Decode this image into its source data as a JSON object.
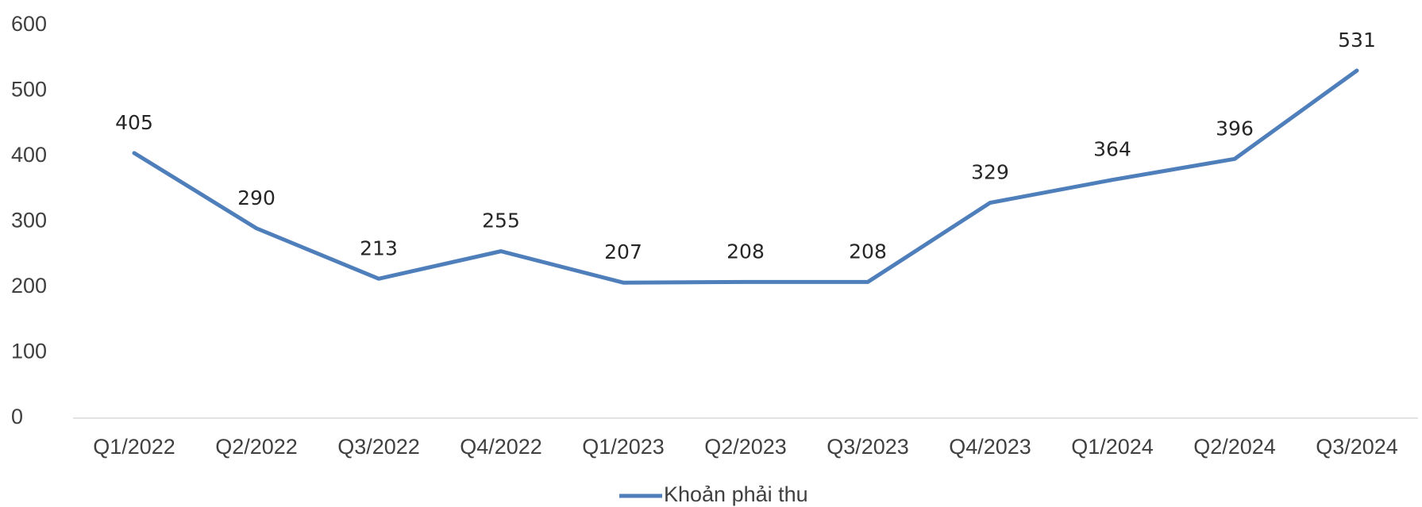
{
  "chart_data": {
    "type": "line",
    "categories": [
      "Q1/2022",
      "Q2/2022",
      "Q3/2022",
      "Q4/2022",
      "Q1/2023",
      "Q2/2023",
      "Q3/2023",
      "Q4/2023",
      "Q1/2024",
      "Q2/2024",
      "Q3/2024"
    ],
    "series": [
      {
        "name": "Khoản phải thu",
        "color": "#4f7fbb",
        "values": [
          405,
          290,
          213,
          255,
          207,
          208,
          208,
          329,
          364,
          396,
          531
        ]
      }
    ],
    "ylim": [
      0,
      600
    ],
    "yticks": [
      0,
      100,
      200,
      300,
      400,
      500,
      600
    ],
    "grid": false,
    "legend": "bottom"
  }
}
